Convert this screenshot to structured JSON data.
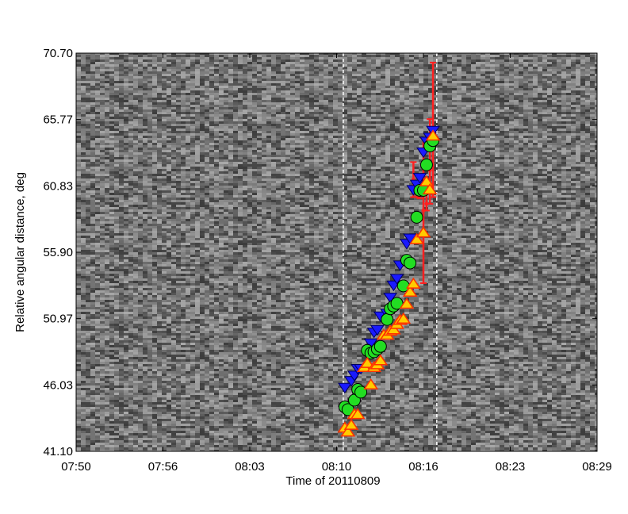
{
  "chart_data": {
    "type": "scatter",
    "title": "",
    "xlabel": "Time of 20110809",
    "ylabel": "Relative angular distance, deg",
    "x_tick_labels": [
      "07:50",
      "07:56",
      "08:03",
      "08:10",
      "08:16",
      "08:23",
      "08:29"
    ],
    "y_tick_labels": [
      "41.10",
      "46.03",
      "50.97",
      "55.90",
      "60.83",
      "65.77",
      "70.70"
    ],
    "xlim": [
      "07:50",
      "08:29"
    ],
    "ylim": [
      41.1,
      70.7
    ],
    "background": "grayscale noise image",
    "vertical_markers": [
      "08:10",
      "08:17"
    ],
    "colors": {
      "blue_series": "#1a1aff",
      "green_series": "#22dd22",
      "yellow_series": "#ffcc00",
      "red_series": "#ff2020",
      "marker": "#ffffff"
    },
    "series": [
      {
        "marker": "blue-down-triangle",
        "x": [
          "08:10:07",
          "08:10:36",
          "08:10:50",
          "08:11:05",
          "08:11:19",
          "08:12:04",
          "08:12:18",
          "08:12:33",
          "08:12:47",
          "08:13:17",
          "08:13:31",
          "08:13:46",
          "08:14:01",
          "08:14:15",
          "08:14:45",
          "08:15:00",
          "08:15:15",
          "08:15:30",
          "08:15:44",
          "08:16:00",
          "08:16:14",
          "08:16:29",
          "08:16:43"
        ],
        "y": [
          45.9,
          46.4,
          46.8,
          47.3,
          47.3,
          49.2,
          50.0,
          50.2,
          51.2,
          51.4,
          52.6,
          53.5,
          54.0,
          55.0,
          56.6,
          57.0,
          60.6,
          61.0,
          61.5,
          63.4,
          64.2,
          64.5,
          65.0
        ]
      },
      {
        "marker": "green-circle",
        "x": [
          "08:10:07",
          "08:10:21",
          "08:10:50",
          "08:11:05",
          "08:11:19",
          "08:11:48",
          "08:12:04",
          "08:12:18",
          "08:12:33",
          "08:12:47",
          "08:13:17",
          "08:13:31",
          "08:13:46",
          "08:14:01",
          "08:14:30",
          "08:14:45",
          "08:15:00",
          "08:15:30",
          "08:15:44",
          "08:16:00",
          "08:16:14",
          "08:16:29",
          "08:16:43"
        ],
        "y": [
          44.4,
          44.2,
          44.9,
          45.7,
          45.5,
          48.6,
          48.4,
          48.5,
          48.7,
          48.9,
          50.9,
          51.7,
          51.9,
          52.1,
          53.4,
          55.3,
          55.1,
          58.5,
          60.5,
          60.5,
          62.4,
          63.8,
          64.2
        ]
      },
      {
        "marker": "yellow-up-triangle",
        "x": [
          "08:10:07",
          "08:10:21",
          "08:10:36",
          "08:10:50",
          "08:11:05",
          "08:11:34",
          "08:11:48",
          "08:12:04",
          "08:12:18",
          "08:12:33",
          "08:12:47",
          "08:13:02",
          "08:13:17",
          "08:13:31",
          "08:13:46",
          "08:14:01",
          "08:14:15",
          "08:14:30",
          "08:14:45",
          "08:15:00",
          "08:15:15",
          "08:15:30",
          "08:16:00",
          "08:16:14",
          "08:16:29",
          "08:16:43"
        ],
        "y": [
          42.8,
          42.5,
          43.0,
          43.8,
          43.8,
          47.3,
          47.6,
          46.0,
          47.3,
          47.5,
          47.8,
          49.7,
          49.7,
          50.0,
          50.1,
          50.5,
          50.8,
          50.9,
          52.0,
          52.9,
          53.5,
          56.8,
          57.3,
          61.1,
          60.5,
          64.5
        ]
      },
      {
        "marker": "red-errorbar",
        "x": [
          "08:15:15",
          "08:15:30",
          "08:15:44",
          "08:16:00",
          "08:16:14",
          "08:16:29",
          "08:16:43"
        ],
        "y": [
          61.3,
          60.6,
          60.4,
          59.0,
          59.5,
          62.0,
          65.0
        ],
        "error_low": [
          1.3,
          0.6,
          0.5,
          5.4,
          0.5,
          2.5,
          5.0
        ],
        "error_high": [
          1.3,
          0.6,
          0.5,
          5.4,
          0.8,
          3.8,
          5.0
        ]
      }
    ]
  }
}
